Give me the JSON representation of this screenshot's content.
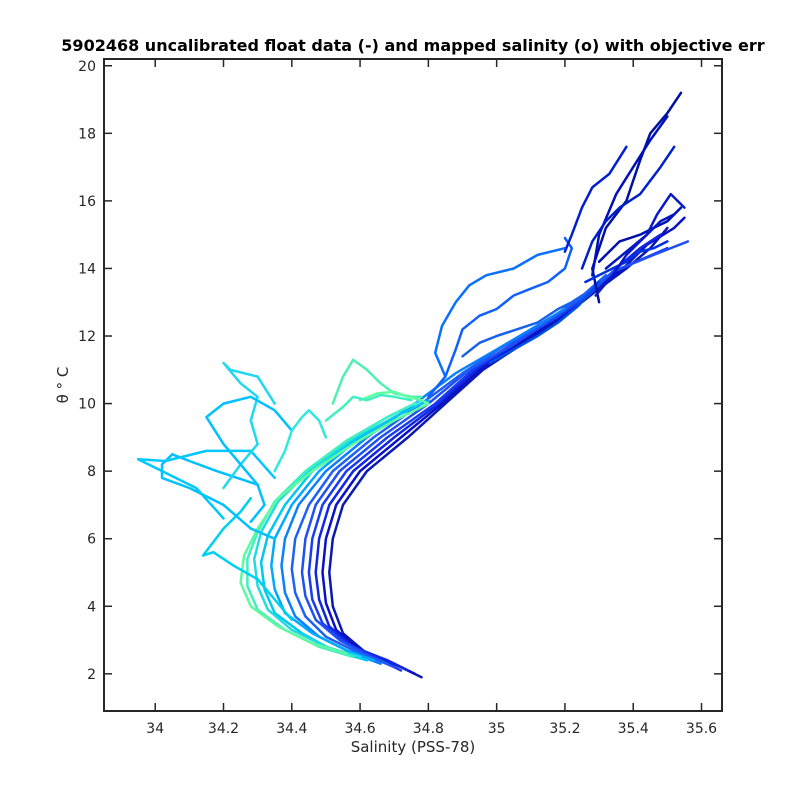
{
  "chart_data": {
    "type": "line",
    "title": "5902468 uncalibrated float data (-) and mapped salinity (o) with objective err",
    "xlabel": "Salinity (PSS-78)",
    "ylabel": "θ ° C",
    "xlim": [
      33.85,
      35.66
    ],
    "ylim": [
      0.9,
      20.2
    ],
    "xticks": [
      34,
      34.2,
      34.4,
      34.6,
      34.8,
      35,
      35.2,
      35.4,
      35.6
    ],
    "xtick_labels": [
      "34",
      "34.2",
      "34.4",
      "34.6",
      "34.8",
      "35",
      "35.2",
      "35.4",
      "35.6"
    ],
    "yticks": [
      2,
      4,
      6,
      8,
      10,
      12,
      14,
      16,
      18,
      20
    ],
    "ytick_labels": [
      "2",
      "4",
      "6",
      "8",
      "10",
      "12",
      "14",
      "16",
      "18",
      "20"
    ],
    "grid": false,
    "legend": "none",
    "colormap": [
      "#00008f",
      "#0000ff",
      "#0060ff",
      "#00c0ff",
      "#20e8e8",
      "#60ffa0"
    ],
    "series": [
      {
        "color": "#0a1ab0",
        "x": [
          34.78,
          34.72,
          34.62,
          34.55,
          34.52,
          34.51,
          34.52,
          34.55,
          34.62,
          34.74,
          34.85,
          34.96,
          35.08,
          35.2,
          35.3,
          35.38,
          35.45,
          35.5
        ],
        "y": [
          1.9,
          2.2,
          2.6,
          3.2,
          4.0,
          5.0,
          6.0,
          7.0,
          8.0,
          9.0,
          10.0,
          11.0,
          11.8,
          12.6,
          13.4,
          14.0,
          14.6,
          15.2
        ]
      },
      {
        "color": "#0a10c8",
        "x": [
          34.76,
          34.7,
          34.6,
          34.53,
          34.5,
          34.49,
          34.5,
          34.53,
          34.6,
          34.72,
          34.84,
          34.95,
          35.07,
          35.19,
          35.29,
          35.37,
          35.44,
          35.52,
          35.55
        ],
        "y": [
          2.0,
          2.3,
          2.7,
          3.3,
          4.1,
          5.0,
          6.0,
          7.0,
          8.0,
          9.0,
          10.0,
          11.0,
          11.8,
          12.6,
          13.4,
          14.0,
          14.7,
          15.2,
          15.5
        ]
      },
      {
        "color": "#1026e0",
        "x": [
          34.74,
          34.68,
          34.58,
          34.51,
          34.48,
          34.47,
          34.48,
          34.51,
          34.58,
          34.7,
          34.83,
          34.94,
          35.06,
          35.18,
          35.28,
          35.35,
          35.42,
          35.48
        ],
        "y": [
          2.1,
          2.4,
          2.8,
          3.4,
          4.2,
          5.0,
          6.0,
          7.0,
          8.0,
          9.0,
          10.0,
          11.0,
          11.8,
          12.6,
          13.3,
          14.0,
          14.6,
          15.0
        ]
      },
      {
        "color": "#1a3cf0",
        "x": [
          34.72,
          34.66,
          34.56,
          34.49,
          34.46,
          34.45,
          34.46,
          34.49,
          34.56,
          34.68,
          34.82,
          34.93,
          35.05,
          35.17,
          35.27,
          35.34,
          35.5
        ],
        "y": [
          2.1,
          2.4,
          2.9,
          3.5,
          4.2,
          5.0,
          6.0,
          7.0,
          8.0,
          9.0,
          10.0,
          11.0,
          11.8,
          12.5,
          13.2,
          13.9,
          14.6
        ]
      },
      {
        "color": "#2050f5",
        "x": [
          34.7,
          34.63,
          34.54,
          34.47,
          34.44,
          34.43,
          34.44,
          34.47,
          34.54,
          34.66,
          34.8,
          34.92,
          35.04,
          35.16,
          35.26,
          35.34,
          35.46,
          35.56
        ],
        "y": [
          2.2,
          2.5,
          3.0,
          3.6,
          4.3,
          5.0,
          6.0,
          7.0,
          8.0,
          9.0,
          10.0,
          11.0,
          11.7,
          12.5,
          13.2,
          13.9,
          14.4,
          14.8
        ]
      },
      {
        "color": "#1c60f8",
        "x": [
          34.68,
          34.6,
          34.5,
          34.44,
          34.41,
          34.4,
          34.41,
          34.45,
          34.52,
          34.64,
          34.78,
          34.9,
          35.02,
          35.14,
          35.24,
          35.32
        ],
        "y": [
          2.3,
          2.6,
          3.1,
          3.7,
          4.4,
          5.1,
          6.0,
          7.0,
          8.0,
          9.0,
          10.0,
          10.9,
          11.7,
          12.4,
          13.1,
          13.8
        ]
      },
      {
        "color": "#0a80ff",
        "x": [
          34.66,
          34.58,
          34.48,
          34.41,
          34.38,
          34.37,
          34.38,
          34.42,
          34.5,
          34.62,
          34.76,
          34.88,
          35.0,
          35.1,
          35.2
        ],
        "y": [
          2.3,
          2.6,
          3.1,
          3.7,
          4.4,
          5.2,
          6.0,
          7.0,
          8.0,
          9.0,
          10.0,
          10.9,
          11.6,
          12.2,
          12.8
        ]
      },
      {
        "color": "#00a8ff",
        "x": [
          34.64,
          34.56,
          34.46,
          34.38,
          34.35,
          34.34,
          34.35,
          34.4,
          34.48,
          34.6,
          34.72,
          34.8
        ],
        "y": [
          2.4,
          2.7,
          3.2,
          3.8,
          4.5,
          5.2,
          6.0,
          7.0,
          8.0,
          9.0,
          9.7,
          10.1
        ]
      },
      {
        "color": "#00c8f0",
        "x": [
          34.62,
          34.52,
          34.43,
          34.35,
          34.32,
          34.31,
          34.33,
          34.38,
          34.46,
          34.58,
          34.7,
          34.78
        ],
        "y": [
          2.4,
          2.7,
          3.2,
          3.8,
          4.5,
          5.3,
          6.1,
          7.0,
          8.0,
          8.9,
          9.6,
          10.0
        ]
      },
      {
        "color": "#20dce0",
        "x": [
          34.6,
          34.5,
          34.4,
          34.33,
          34.3,
          34.29,
          34.31,
          34.36,
          34.45,
          34.57,
          34.68,
          34.78
        ],
        "y": [
          2.5,
          2.8,
          3.3,
          3.9,
          4.6,
          5.4,
          6.2,
          7.1,
          8.0,
          8.9,
          9.6,
          10.1
        ]
      },
      {
        "color": "#40f0c0",
        "x": [
          34.58,
          34.48,
          34.38,
          34.3,
          34.27,
          34.27,
          34.3,
          34.35,
          34.44,
          34.56,
          34.68,
          34.76
        ],
        "y": [
          2.5,
          2.8,
          3.3,
          3.9,
          4.6,
          5.4,
          6.2,
          7.1,
          8.0,
          8.9,
          9.6,
          10.0
        ]
      },
      {
        "color": "#60f8a0",
        "x": [
          34.56,
          34.46,
          34.36,
          34.28,
          34.25,
          34.26,
          34.3,
          34.36,
          34.46,
          34.58,
          34.7,
          34.8
        ],
        "y": [
          2.6,
          2.9,
          3.4,
          4.0,
          4.7,
          5.5,
          6.3,
          7.2,
          8.0,
          8.8,
          9.5,
          10.0
        ]
      },
      {
        "color": "#00d0f0",
        "x": [
          34.4,
          34.35,
          34.3,
          34.23,
          34.17,
          34.14,
          34.2,
          34.25,
          34.28
        ],
        "y": [
          3.6,
          4.2,
          4.8,
          5.2,
          5.6,
          5.5,
          6.3,
          6.8,
          7.2
        ]
      },
      {
        "color": "#00c0ff",
        "x": [
          34.35,
          34.28,
          34.2,
          34.1,
          34.02,
          34.02,
          34.05,
          34.1,
          34.18,
          34.3
        ],
        "y": [
          6.0,
          6.3,
          7.0,
          7.5,
          7.8,
          8.2,
          8.5,
          8.3,
          8.0,
          7.6
        ]
      },
      {
        "color": "#00c8ff",
        "x": [
          34.2,
          34.12,
          33.95,
          34.03,
          34.15,
          34.28,
          34.35
        ],
        "y": [
          6.6,
          7.5,
          8.35,
          8.3,
          8.6,
          8.6,
          7.8
        ]
      },
      {
        "color": "#20d8f0",
        "x": [
          34.2,
          34.25,
          34.3,
          34.28,
          34.3,
          34.25,
          34.2,
          34.22,
          34.3,
          34.35
        ],
        "y": [
          7.5,
          8.2,
          8.8,
          9.5,
          10.2,
          10.6,
          11.2,
          11.0,
          10.8,
          10.0
        ]
      },
      {
        "color": "#00c0ff",
        "x": [
          34.28,
          34.32,
          34.3,
          34.25,
          34.2,
          34.15,
          34.2,
          34.28,
          34.35,
          34.4
        ],
        "y": [
          6.5,
          7.0,
          7.6,
          8.2,
          8.8,
          9.6,
          10.0,
          10.2,
          9.8,
          9.2
        ]
      },
      {
        "color": "#30e8e0",
        "x": [
          34.35,
          34.38,
          34.4,
          34.43,
          34.45,
          34.48,
          34.5
        ],
        "y": [
          8.0,
          8.6,
          9.2,
          9.6,
          9.8,
          9.5,
          9.0
        ]
      },
      {
        "color": "#50f0b0",
        "x": [
          34.52,
          34.55,
          34.58,
          34.62,
          34.66,
          34.7,
          34.75,
          34.78
        ],
        "y": [
          10.0,
          10.8,
          11.3,
          11.0,
          10.6,
          10.3,
          10.2,
          10.2
        ]
      },
      {
        "color": "#60ffa0",
        "x": [
          34.6,
          34.65,
          34.7,
          34.74,
          34.78,
          34.8
        ],
        "y": [
          10.1,
          10.3,
          10.35,
          10.2,
          10.1,
          10.0
        ]
      },
      {
        "color": "#40f0c0",
        "x": [
          34.5,
          34.55,
          34.58,
          34.62,
          34.66,
          34.7,
          34.75
        ],
        "y": [
          9.5,
          9.9,
          10.2,
          10.1,
          10.25,
          10.2,
          10.1
        ]
      },
      {
        "color": "#1060ff",
        "x": [
          34.8,
          34.85,
          34.88,
          34.9,
          34.95,
          35.0,
          35.05,
          35.1,
          35.15,
          35.2,
          35.22,
          35.2
        ],
        "y": [
          10.2,
          10.8,
          11.6,
          12.2,
          12.6,
          12.8,
          13.2,
          13.4,
          13.6,
          14.0,
          14.6,
          14.9
        ]
      },
      {
        "color": "#0a70ff",
        "x": [
          34.85,
          34.82,
          34.84,
          34.88,
          34.92,
          34.97,
          35.05,
          35.12,
          35.2
        ],
        "y": [
          10.8,
          11.5,
          12.3,
          13.0,
          13.5,
          13.8,
          14.0,
          14.4,
          14.6
        ]
      },
      {
        "color": "#1860f0",
        "x": [
          34.9,
          34.95,
          35.0,
          35.06,
          35.12,
          35.18,
          35.22,
          35.25
        ],
        "y": [
          11.4,
          11.8,
          12.0,
          12.2,
          12.4,
          12.8,
          13.0,
          13.2
        ]
      },
      {
        "color": "#0050e8",
        "x": [
          34.98,
          35.05,
          35.12,
          35.18,
          35.24,
          35.3
        ],
        "y": [
          11.2,
          11.6,
          12.0,
          12.4,
          12.9,
          13.6
        ]
      },
      {
        "color": "#0010a0",
        "x": [
          35.3,
          35.28,
          35.32,
          35.38,
          35.4,
          35.42,
          35.45,
          35.5,
          35.54
        ],
        "y": [
          13.0,
          14.0,
          15.2,
          16.0,
          16.6,
          17.2,
          18.0,
          18.6,
          19.2
        ]
      },
      {
        "color": "#0010b8",
        "x": [
          35.28,
          35.3,
          35.35,
          35.4,
          35.45,
          35.5
        ],
        "y": [
          13.8,
          15.0,
          16.2,
          17.0,
          17.8,
          18.5
        ]
      },
      {
        "color": "#0020c8",
        "x": [
          35.25,
          35.28,
          35.32,
          35.36,
          35.42,
          35.48,
          35.52
        ],
        "y": [
          14.0,
          14.8,
          15.4,
          15.8,
          16.2,
          17.0,
          17.6
        ]
      },
      {
        "color": "#0010b0",
        "x": [
          35.3,
          35.36,
          35.42,
          35.46,
          35.5,
          35.54
        ],
        "y": [
          14.2,
          14.8,
          15.0,
          15.2,
          15.4,
          15.8
        ]
      },
      {
        "color": "#0020d0",
        "x": [
          35.2,
          35.22,
          35.25,
          35.28,
          35.33,
          35.38
        ],
        "y": [
          14.5,
          15.0,
          15.8,
          16.4,
          16.8,
          17.6
        ]
      },
      {
        "color": "#0018c0",
        "x": [
          35.32,
          35.38,
          35.44,
          35.48,
          35.52
        ],
        "y": [
          14.0,
          14.5,
          15.0,
          15.4,
          15.6
        ]
      },
      {
        "color": "#0030e0",
        "x": [
          35.26,
          35.32,
          35.38,
          35.42,
          35.46,
          35.5
        ],
        "y": [
          13.6,
          13.9,
          14.2,
          14.5,
          14.6,
          14.8
        ]
      },
      {
        "color": "#0818c8",
        "x": [
          35.29,
          35.34,
          35.38,
          35.44,
          35.47,
          35.51,
          35.55
        ],
        "y": [
          13.2,
          13.8,
          14.4,
          15.0,
          15.6,
          16.2,
          15.8
        ]
      }
    ]
  }
}
